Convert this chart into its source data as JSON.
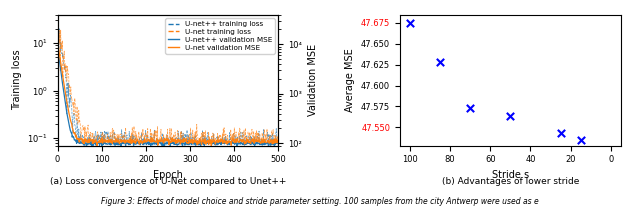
{
  "left_plot": {
    "xlabel": "Epoch",
    "ylabel": "Training loss",
    "ylabel_right": "Validation MSE",
    "xlim": [
      0,
      500
    ],
    "ylim_log": [
      0.07,
      40
    ],
    "ylim_right": [
      90,
      40000
    ],
    "yticks_right": [
      100,
      1000,
      10000
    ],
    "ytick_labels_right": [
      "10²",
      "10³",
      "10⁴"
    ],
    "unetpp_train_color": "#1f77b4",
    "unet_train_color": "#ff7f0e",
    "unetpp_val_color": "#1f77b4",
    "unet_val_color": "#ff7f0e",
    "legend_labels": [
      "U-net++ training loss",
      "U-net training loss",
      "U-net++ validation MSE",
      "U-net validation MSE"
    ],
    "caption": "(a) Loss convergence of U-Net compared to Unet++"
  },
  "right_plot": {
    "xlabel": "Stride s",
    "ylabel": "Average MSE",
    "stride_x": [
      100,
      85,
      70,
      50,
      25,
      15
    ],
    "mse_y": [
      47.675,
      47.628,
      47.573,
      47.563,
      47.543,
      47.535
    ],
    "xlim": [
      105,
      -5
    ],
    "ylim": [
      47.528,
      47.685
    ],
    "yticks": [
      47.55,
      47.575,
      47.6,
      47.625,
      47.65,
      47.675
    ],
    "xticks": [
      100,
      80,
      60,
      40,
      20,
      0
    ],
    "highlight_ticks": [
      47.675,
      47.55
    ],
    "highlight_color": "#ff0000",
    "marker_color": "#0000ff",
    "caption": "(b) Advantages of lower stride"
  },
  "figure_caption": "Figure 3: Effects of model choice and stride parameter setting. 100 samples from the city Antwerp were used as e"
}
